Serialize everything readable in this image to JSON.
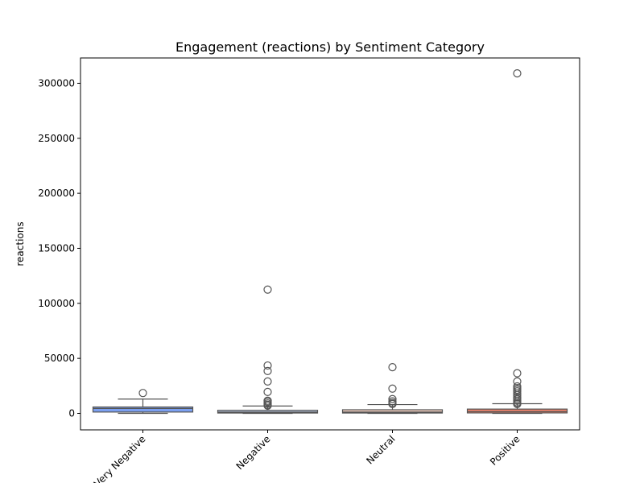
{
  "chart_data": {
    "type": "box",
    "title": "Engagement (reactions) by Sentiment Category",
    "xlabel": "",
    "ylabel": "reactions",
    "ylim": [
      -15000,
      323000
    ],
    "yticks": [
      0,
      50000,
      100000,
      150000,
      200000,
      250000,
      300000
    ],
    "grid": false,
    "categories": [
      "Very Negative",
      "Negative",
      "Neutral",
      "Positive"
    ],
    "colors": [
      "#7b9ff0",
      "#c3d2ee",
      "#efcdbe",
      "#e3806a"
    ],
    "boxes": [
      {
        "category": "Very Negative",
        "whisker_low": 0,
        "q1": 1200,
        "median": 4500,
        "q3": 5800,
        "whisker_high": 13000,
        "outliers": [
          18500
        ]
      },
      {
        "category": "Negative",
        "whisker_low": 0,
        "q1": 300,
        "median": 1200,
        "q3": 2800,
        "whisker_high": 6700,
        "outliers": [
          7000,
          7800,
          9000,
          10500,
          11500,
          19500,
          29000,
          38500,
          43500,
          112500
        ]
      },
      {
        "category": "Neutral",
        "whisker_low": 0,
        "q1": 300,
        "median": 1200,
        "q3": 3300,
        "whisker_high": 8000,
        "outliers": [
          8500,
          9500,
          11000,
          13000,
          22500,
          42000
        ]
      },
      {
        "category": "Positive",
        "whisker_low": 0,
        "q1": 400,
        "median": 1500,
        "q3": 3900,
        "whisker_high": 8800,
        "outliers": [
          8500,
          9000,
          10000,
          11500,
          13000,
          14500,
          16500,
          18000,
          20000,
          21500,
          23000,
          24500,
          29000,
          36500,
          309000
        ]
      }
    ]
  }
}
